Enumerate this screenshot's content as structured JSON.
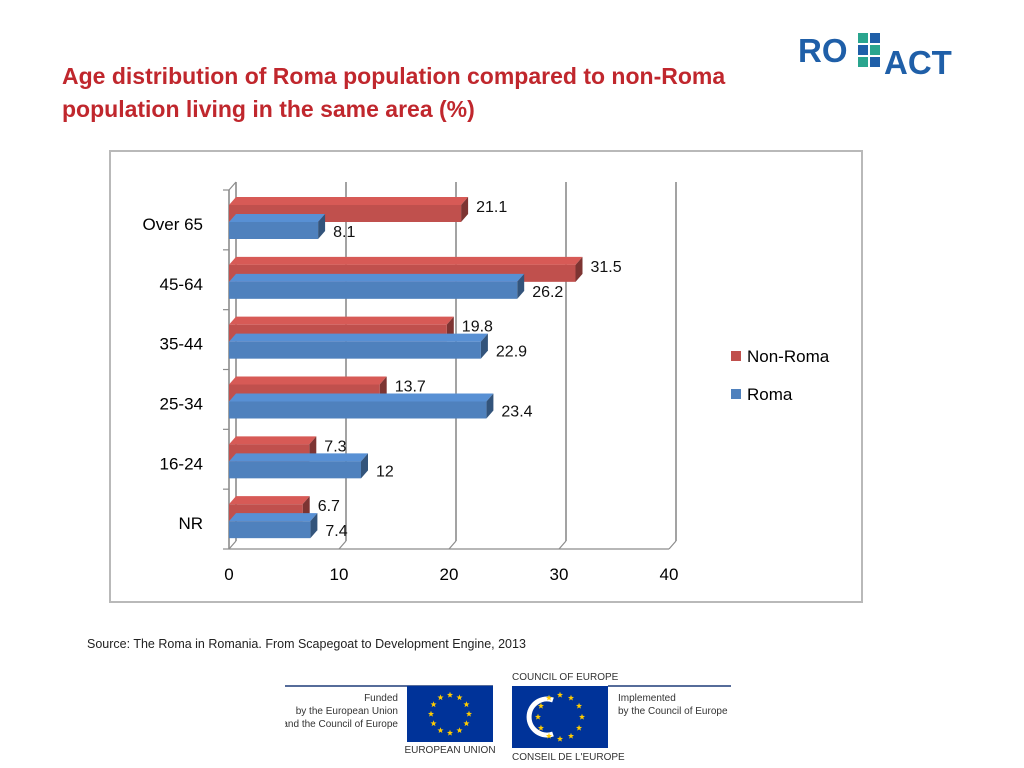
{
  "title": "Age distribution of Roma population compared to non-Roma population living in the same area (%)",
  "logo": {
    "part1": "RO",
    "part2": "ACT"
  },
  "source": "Source: The Roma in Romania. From Scapegoat to Development Engine, 2013",
  "footer": {
    "funded_line1": "Funded",
    "funded_line2": "by the European Union",
    "funded_line3": "and the Council of Europe",
    "eu_label": "EUROPEAN UNION",
    "coe_top": "COUNCIL OF EUROPE",
    "coe_bottom": "CONSEIL DE L'EUROPE",
    "implemented_line1": "Implemented",
    "implemented_line2": "by the Council of Europe"
  },
  "colors": {
    "title": "#c0272d",
    "non_roma": "#c0504d",
    "roma": "#4f81bd",
    "logo_blue": "#1f5fa8",
    "logo_green": "#2aa58e",
    "eu_blue": "#003399",
    "star_yellow": "#ffcc00"
  },
  "chart_data": {
    "type": "bar",
    "orientation": "horizontal",
    "categories": [
      "Over  65",
      "45-64",
      "35-44",
      "25-34",
      "16-24",
      "NR"
    ],
    "series": [
      {
        "name": "Non-Roma",
        "values": [
          21.1,
          31.5,
          19.8,
          13.7,
          7.3,
          6.7
        ],
        "labels": [
          "21.1",
          "31.5",
          "19.8",
          "13.7",
          "7.3",
          "6.7"
        ]
      },
      {
        "name": "Roma",
        "values": [
          8.1,
          26.2,
          22.9,
          23.4,
          12,
          7.4
        ],
        "labels": [
          "8.1",
          "26.2",
          "22.9",
          "23.4",
          "12",
          "7.4"
        ]
      }
    ],
    "xlim": [
      0,
      40
    ],
    "xticks": [
      "0",
      "10",
      "20",
      "30",
      "40"
    ],
    "grid": true,
    "legend": "right"
  }
}
